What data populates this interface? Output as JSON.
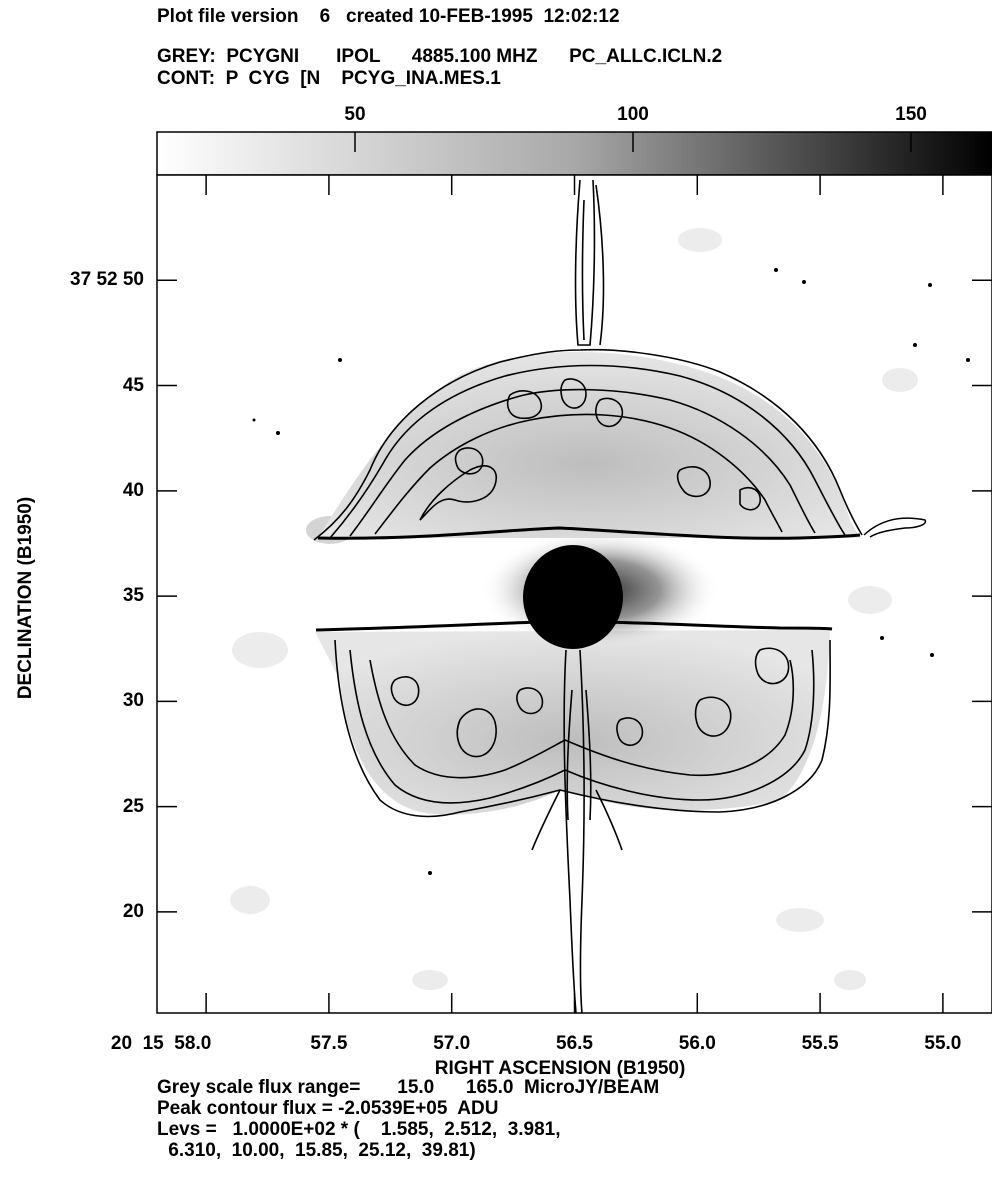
{
  "header": {
    "line1": "Plot file version    6   created 10-FEB-1995  12:02:12",
    "line2": "GREY:  PCYGNI       IPOL      4885.100 MHZ      PC_ALLC.ICLN.2",
    "line3": "CONT:  P  CYG  [N    PCYG_INA.MES.1"
  },
  "wedge": {
    "ticks": [
      "50",
      "100",
      "150"
    ],
    "min": 15,
    "max": 165
  },
  "footer": {
    "line1": "Grey scale flux range=       15.0      165.0  MicroJY/BEAM",
    "line2": "Peak contour flux = -2.0539E+05  ADU",
    "line3": "Levs =   1.0000E+02 * (    1.585,  2.512,  3.981,",
    "line4": " 6.310,  10.00,  15.85,  25.12,  39.81)"
  },
  "chart_data": {
    "type": "heatmap",
    "title": "",
    "xlabel": "RIGHT ASCENSION (B1950)",
    "ylabel": "DECLINATION (B1950)",
    "x_tick_labels": [
      "20  15  58.0",
      "57.5",
      "57.0",
      "56.5",
      "56.0",
      "55.5",
      "55.0"
    ],
    "x_ticks_seconds": [
      58.0,
      57.5,
      57.0,
      56.5,
      56.0,
      55.5,
      55.0
    ],
    "y_tick_labels": [
      "37  52  50",
      "45",
      "40",
      "35",
      "30",
      "25",
      "20"
    ],
    "y_ticks_arcsec": [
      50,
      45,
      40,
      35,
      30,
      25,
      20
    ],
    "xlim_seconds": [
      58.2,
      54.8
    ],
    "ylim_arcsec": [
      15.2,
      55.0
    ],
    "grey_range": [
      15.0,
      165.0
    ],
    "grey_units": "MicroJY/BEAM",
    "contour_levels_multiplier": 100,
    "contour_levels": [
      1.585,
      2.512,
      3.981,
      6.31,
      10.0,
      15.85,
      25.12,
      39.81
    ],
    "peak_contour_flux": "-2.0539E+05 ADU",
    "features": {
      "central_source_center": [
        56.48,
        35.0
      ],
      "upper_lobe_dec_range": [
        38.2,
        45.5
      ],
      "lower_lobe_dec_range": [
        24.7,
        33.5
      ],
      "jet_ra": 56.35
    }
  }
}
